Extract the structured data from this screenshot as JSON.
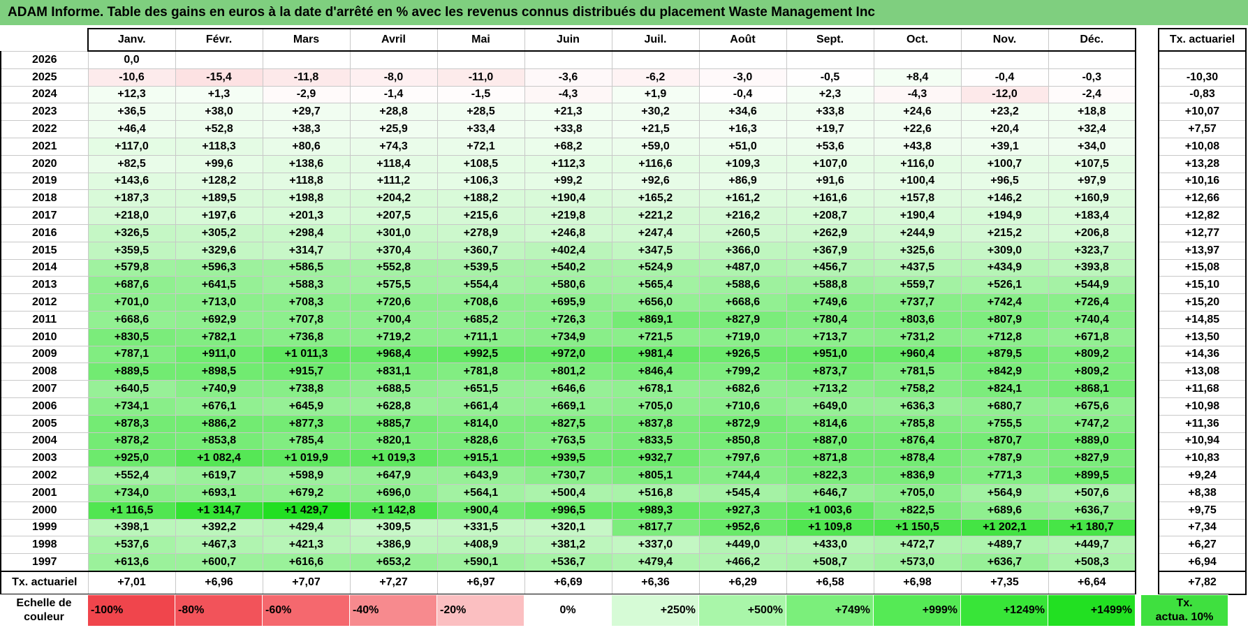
{
  "title": "ADAM Informe. Table des gains en euros à la date d'arrêté en % avec les revenus connus distribués du placement Waste Management Inc",
  "months": [
    "Janv.",
    "Févr.",
    "Mars",
    "Avril",
    "Mai",
    "Juin",
    "Juil.",
    "Août",
    "Sept.",
    "Oct.",
    "Nov.",
    "Déc."
  ],
  "side_header": "Tx. actuariel",
  "rows": [
    {
      "year": "2026",
      "v": [
        "0,0",
        "",
        "",
        "",
        "",
        "",
        "",
        "",
        "",
        "",
        "",
        ""
      ],
      "n": [
        0,
        null,
        null,
        null,
        null,
        null,
        null,
        null,
        null,
        null,
        null,
        null
      ],
      "rate": ""
    },
    {
      "year": "2025",
      "v": [
        "-10,6",
        "-15,4",
        "-11,8",
        "-8,0",
        "-11,0",
        "-3,6",
        "-6,2",
        "-3,0",
        "-0,5",
        "+8,4",
        "-0,4",
        "-0,3"
      ],
      "n": [
        -10.6,
        -15.4,
        -11.8,
        -8.0,
        -11.0,
        -3.6,
        -6.2,
        -3.0,
        -0.5,
        8.4,
        -0.4,
        -0.3
      ],
      "rate": "-10,30"
    },
    {
      "year": "2024",
      "v": [
        "+12,3",
        "+1,3",
        "-2,9",
        "-1,4",
        "-1,5",
        "-4,3",
        "+1,9",
        "-0,4",
        "+2,3",
        "-4,3",
        "-12,0",
        "-2,4"
      ],
      "n": [
        12.3,
        1.3,
        -2.9,
        -1.4,
        -1.5,
        -4.3,
        1.9,
        -0.4,
        2.3,
        -4.3,
        -12.0,
        -2.4
      ],
      "rate": "-0,83"
    },
    {
      "year": "2023",
      "v": [
        "+36,5",
        "+38,0",
        "+29,7",
        "+28,8",
        "+28,5",
        "+21,3",
        "+30,2",
        "+34,6",
        "+33,8",
        "+24,6",
        "+23,2",
        "+18,8"
      ],
      "n": [
        36.5,
        38.0,
        29.7,
        28.8,
        28.5,
        21.3,
        30.2,
        34.6,
        33.8,
        24.6,
        23.2,
        18.8
      ],
      "rate": "+10,07"
    },
    {
      "year": "2022",
      "v": [
        "+46,4",
        "+52,8",
        "+38,3",
        "+25,9",
        "+33,4",
        "+33,8",
        "+21,5",
        "+16,3",
        "+19,7",
        "+22,6",
        "+20,4",
        "+32,4"
      ],
      "n": [
        46.4,
        52.8,
        38.3,
        25.9,
        33.4,
        33.8,
        21.5,
        16.3,
        19.7,
        22.6,
        20.4,
        32.4
      ],
      "rate": "+7,57"
    },
    {
      "year": "2021",
      "v": [
        "+117,0",
        "+118,3",
        "+80,6",
        "+74,3",
        "+72,1",
        "+68,2",
        "+59,0",
        "+51,0",
        "+53,6",
        "+43,8",
        "+39,1",
        "+34,0"
      ],
      "n": [
        117.0,
        118.3,
        80.6,
        74.3,
        72.1,
        68.2,
        59.0,
        51.0,
        53.6,
        43.8,
        39.1,
        34.0
      ],
      "rate": "+10,08"
    },
    {
      "year": "2020",
      "v": [
        "+82,5",
        "+99,6",
        "+138,6",
        "+118,4",
        "+108,5",
        "+112,3",
        "+116,6",
        "+109,3",
        "+107,0",
        "+116,0",
        "+100,7",
        "+107,5"
      ],
      "n": [
        82.5,
        99.6,
        138.6,
        118.4,
        108.5,
        112.3,
        116.6,
        109.3,
        107.0,
        116.0,
        100.7,
        107.5
      ],
      "rate": "+13,28"
    },
    {
      "year": "2019",
      "v": [
        "+143,6",
        "+128,2",
        "+118,8",
        "+111,2",
        "+106,3",
        "+99,2",
        "+92,6",
        "+86,9",
        "+91,6",
        "+100,4",
        "+96,5",
        "+97,9"
      ],
      "n": [
        143.6,
        128.2,
        118.8,
        111.2,
        106.3,
        99.2,
        92.6,
        86.9,
        91.6,
        100.4,
        96.5,
        97.9
      ],
      "rate": "+10,16"
    },
    {
      "year": "2018",
      "v": [
        "+187,3",
        "+189,5",
        "+198,8",
        "+204,2",
        "+188,2",
        "+190,4",
        "+165,2",
        "+161,2",
        "+161,6",
        "+157,8",
        "+146,2",
        "+160,9"
      ],
      "n": [
        187.3,
        189.5,
        198.8,
        204.2,
        188.2,
        190.4,
        165.2,
        161.2,
        161.6,
        157.8,
        146.2,
        160.9
      ],
      "rate": "+12,66"
    },
    {
      "year": "2017",
      "v": [
        "+218,0",
        "+197,6",
        "+201,3",
        "+207,5",
        "+215,6",
        "+219,8",
        "+221,2",
        "+216,2",
        "+208,7",
        "+190,4",
        "+194,9",
        "+183,4"
      ],
      "n": [
        218.0,
        197.6,
        201.3,
        207.5,
        215.6,
        219.8,
        221.2,
        216.2,
        208.7,
        190.4,
        194.9,
        183.4
      ],
      "rate": "+12,82"
    },
    {
      "year": "2016",
      "v": [
        "+326,5",
        "+305,2",
        "+298,4",
        "+301,0",
        "+278,9",
        "+246,8",
        "+247,4",
        "+260,5",
        "+262,9",
        "+244,9",
        "+215,2",
        "+206,8"
      ],
      "n": [
        326.5,
        305.2,
        298.4,
        301.0,
        278.9,
        246.8,
        247.4,
        260.5,
        262.9,
        244.9,
        215.2,
        206.8
      ],
      "rate": "+12,77"
    },
    {
      "year": "2015",
      "v": [
        "+359,5",
        "+329,6",
        "+314,7",
        "+370,4",
        "+360,7",
        "+402,4",
        "+347,5",
        "+366,0",
        "+367,9",
        "+325,6",
        "+309,0",
        "+323,7"
      ],
      "n": [
        359.5,
        329.6,
        314.7,
        370.4,
        360.7,
        402.4,
        347.5,
        366.0,
        367.9,
        325.6,
        309.0,
        323.7
      ],
      "rate": "+13,97"
    },
    {
      "year": "2014",
      "v": [
        "+579,8",
        "+596,3",
        "+586,5",
        "+552,8",
        "+539,5",
        "+540,2",
        "+524,9",
        "+487,0",
        "+456,7",
        "+437,5",
        "+434,9",
        "+393,8"
      ],
      "n": [
        579.8,
        596.3,
        586.5,
        552.8,
        539.5,
        540.2,
        524.9,
        487.0,
        456.7,
        437.5,
        434.9,
        393.8
      ],
      "rate": "+15,08"
    },
    {
      "year": "2013",
      "v": [
        "+687,6",
        "+641,5",
        "+588,3",
        "+575,5",
        "+554,4",
        "+580,6",
        "+565,4",
        "+588,6",
        "+588,8",
        "+559,7",
        "+526,1",
        "+544,9"
      ],
      "n": [
        687.6,
        641.5,
        588.3,
        575.5,
        554.4,
        580.6,
        565.4,
        588.6,
        588.8,
        559.7,
        526.1,
        544.9
      ],
      "rate": "+15,10"
    },
    {
      "year": "2012",
      "v": [
        "+701,0",
        "+713,0",
        "+708,3",
        "+720,6",
        "+708,6",
        "+695,9",
        "+656,0",
        "+668,6",
        "+749,6",
        "+737,7",
        "+742,4",
        "+726,4"
      ],
      "n": [
        701.0,
        713.0,
        708.3,
        720.6,
        708.6,
        695.9,
        656.0,
        668.6,
        749.6,
        737.7,
        742.4,
        726.4
      ],
      "rate": "+15,20"
    },
    {
      "year": "2011",
      "v": [
        "+668,6",
        "+692,9",
        "+707,8",
        "+700,4",
        "+685,2",
        "+726,3",
        "+869,1",
        "+827,9",
        "+780,4",
        "+803,6",
        "+807,9",
        "+740,4"
      ],
      "n": [
        668.6,
        692.9,
        707.8,
        700.4,
        685.2,
        726.3,
        869.1,
        827.9,
        780.4,
        803.6,
        807.9,
        740.4
      ],
      "rate": "+14,85"
    },
    {
      "year": "2010",
      "v": [
        "+830,5",
        "+782,1",
        "+736,8",
        "+719,2",
        "+711,1",
        "+734,9",
        "+721,5",
        "+719,0",
        "+713,7",
        "+731,2",
        "+712,8",
        "+671,8"
      ],
      "n": [
        830.5,
        782.1,
        736.8,
        719.2,
        711.1,
        734.9,
        721.5,
        719.0,
        713.7,
        731.2,
        712.8,
        671.8
      ],
      "rate": "+13,50"
    },
    {
      "year": "2009",
      "v": [
        "+787,1",
        "+911,0",
        "+1 011,3",
        "+968,4",
        "+992,5",
        "+972,0",
        "+981,4",
        "+926,5",
        "+951,0",
        "+960,4",
        "+879,5",
        "+809,2"
      ],
      "n": [
        787.1,
        911.0,
        1011.3,
        968.4,
        992.5,
        972.0,
        981.4,
        926.5,
        951.0,
        960.4,
        879.5,
        809.2
      ],
      "rate": "+14,36"
    },
    {
      "year": "2008",
      "v": [
        "+889,5",
        "+898,5",
        "+915,7",
        "+831,1",
        "+781,8",
        "+801,2",
        "+846,4",
        "+799,2",
        "+873,7",
        "+781,5",
        "+842,9",
        "+809,2"
      ],
      "n": [
        889.5,
        898.5,
        915.7,
        831.1,
        781.8,
        801.2,
        846.4,
        799.2,
        873.7,
        781.5,
        842.9,
        809.2
      ],
      "rate": "+13,08"
    },
    {
      "year": "2007",
      "v": [
        "+640,5",
        "+740,9",
        "+738,8",
        "+688,5",
        "+651,5",
        "+646,6",
        "+678,1",
        "+682,6",
        "+713,2",
        "+758,2",
        "+824,1",
        "+868,1"
      ],
      "n": [
        640.5,
        740.9,
        738.8,
        688.5,
        651.5,
        646.6,
        678.1,
        682.6,
        713.2,
        758.2,
        824.1,
        868.1
      ],
      "rate": "+11,68"
    },
    {
      "year": "2006",
      "v": [
        "+734,1",
        "+676,1",
        "+645,9",
        "+628,8",
        "+661,4",
        "+669,1",
        "+705,0",
        "+710,6",
        "+649,0",
        "+636,3",
        "+680,7",
        "+675,6"
      ],
      "n": [
        734.1,
        676.1,
        645.9,
        628.8,
        661.4,
        669.1,
        705.0,
        710.6,
        649.0,
        636.3,
        680.7,
        675.6
      ],
      "rate": "+10,98"
    },
    {
      "year": "2005",
      "v": [
        "+878,3",
        "+886,2",
        "+877,3",
        "+885,7",
        "+814,0",
        "+827,5",
        "+837,8",
        "+872,9",
        "+814,6",
        "+785,8",
        "+755,5",
        "+747,2"
      ],
      "n": [
        878.3,
        886.2,
        877.3,
        885.7,
        814.0,
        827.5,
        837.8,
        872.9,
        814.6,
        785.8,
        755.5,
        747.2
      ],
      "rate": "+11,36"
    },
    {
      "year": "2004",
      "v": [
        "+878,2",
        "+853,8",
        "+785,4",
        "+820,1",
        "+828,6",
        "+763,5",
        "+833,5",
        "+850,8",
        "+887,0",
        "+876,4",
        "+870,7",
        "+889,0"
      ],
      "n": [
        878.2,
        853.8,
        785.4,
        820.1,
        828.6,
        763.5,
        833.5,
        850.8,
        887.0,
        876.4,
        870.7,
        889.0
      ],
      "rate": "+10,94"
    },
    {
      "year": "2003",
      "v": [
        "+925,0",
        "+1 082,4",
        "+1 019,9",
        "+1 019,3",
        "+915,1",
        "+939,5",
        "+932,7",
        "+797,6",
        "+871,8",
        "+878,4",
        "+787,9",
        "+827,9"
      ],
      "n": [
        925.0,
        1082.4,
        1019.9,
        1019.3,
        915.1,
        939.5,
        932.7,
        797.6,
        871.8,
        878.4,
        787.9,
        827.9
      ],
      "rate": "+10,83"
    },
    {
      "year": "2002",
      "v": [
        "+552,4",
        "+619,7",
        "+598,9",
        "+647,9",
        "+643,9",
        "+730,7",
        "+805,1",
        "+744,4",
        "+822,3",
        "+836,9",
        "+771,3",
        "+899,5"
      ],
      "n": [
        552.4,
        619.7,
        598.9,
        647.9,
        643.9,
        730.7,
        805.1,
        744.4,
        822.3,
        836.9,
        771.3,
        899.5
      ],
      "rate": "+9,24"
    },
    {
      "year": "2001",
      "v": [
        "+734,0",
        "+693,1",
        "+679,2",
        "+696,0",
        "+564,1",
        "+500,4",
        "+516,8",
        "+545,4",
        "+646,7",
        "+705,0",
        "+564,9",
        "+507,6"
      ],
      "n": [
        734.0,
        693.1,
        679.2,
        696.0,
        564.1,
        500.4,
        516.8,
        545.4,
        646.7,
        705.0,
        564.9,
        507.6
      ],
      "rate": "+8,38"
    },
    {
      "year": "2000",
      "v": [
        "+1 116,5",
        "+1 314,7",
        "+1 429,7",
        "+1 142,8",
        "+900,4",
        "+996,5",
        "+989,3",
        "+927,3",
        "+1 003,6",
        "+822,5",
        "+689,6",
        "+636,7"
      ],
      "n": [
        1116.5,
        1314.7,
        1429.7,
        1142.8,
        900.4,
        996.5,
        989.3,
        927.3,
        1003.6,
        822.5,
        689.6,
        636.7
      ],
      "rate": "+9,75"
    },
    {
      "year": "1999",
      "v": [
        "+398,1",
        "+392,2",
        "+429,4",
        "+309,5",
        "+331,5",
        "+320,1",
        "+817,7",
        "+952,6",
        "+1 109,8",
        "+1 150,5",
        "+1 202,1",
        "+1 180,7"
      ],
      "n": [
        398.1,
        392.2,
        429.4,
        309.5,
        331.5,
        320.1,
        817.7,
        952.6,
        1109.8,
        1150.5,
        1202.1,
        1180.7
      ],
      "rate": "+7,34"
    },
    {
      "year": "1998",
      "v": [
        "+537,6",
        "+467,3",
        "+421,3",
        "+386,9",
        "+408,9",
        "+381,2",
        "+337,0",
        "+449,0",
        "+433,0",
        "+472,7",
        "+489,7",
        "+449,7"
      ],
      "n": [
        537.6,
        467.3,
        421.3,
        386.9,
        408.9,
        381.2,
        337.0,
        449.0,
        433.0,
        472.7,
        489.7,
        449.7
      ],
      "rate": "+6,27"
    },
    {
      "year": "1997",
      "v": [
        "+613,6",
        "+600,7",
        "+616,6",
        "+653,2",
        "+590,1",
        "+536,7",
        "+479,4",
        "+466,2",
        "+508,7",
        "+573,0",
        "+636,7",
        "+508,3"
      ],
      "n": [
        613.6,
        600.7,
        616.6,
        653.2,
        590.1,
        536.7,
        479.4,
        466.2,
        508.7,
        573.0,
        636.7,
        508.3
      ],
      "rate": "+6,94"
    }
  ],
  "footer": {
    "label": "Tx. actuariel",
    "values": [
      "+7,01",
      "+6,96",
      "+7,07",
      "+7,27",
      "+6,97",
      "+6,69",
      "+6,36",
      "+6,29",
      "+6,58",
      "+6,98",
      "+7,35",
      "+6,64"
    ],
    "total": "+7,82"
  },
  "legend": {
    "label_line1": "Echelle de",
    "label_line2": "couleur",
    "items": [
      {
        "text": "-100%",
        "color": "#f0454c",
        "align": "left"
      },
      {
        "text": "-80%",
        "color": "#f2535a",
        "align": "left"
      },
      {
        "text": "-60%",
        "color": "#f5686e",
        "align": "left"
      },
      {
        "text": "-40%",
        "color": "#f78a8e",
        "align": "left"
      },
      {
        "text": "-20%",
        "color": "#fbbfc1",
        "align": "left"
      },
      {
        "text": "0%",
        "color": "#ffffff",
        "align": "center"
      },
      {
        "text": "+250%",
        "color": "#d6fbd6",
        "align": "right"
      },
      {
        "text": "+500%",
        "color": "#a9f6a9",
        "align": "right"
      },
      {
        "text": "+749%",
        "color": "#7bef7b",
        "align": "right"
      },
      {
        "text": "+999%",
        "color": "#55ea55",
        "align": "right"
      },
      {
        "text": "+1249%",
        "color": "#38e538",
        "align": "right"
      },
      {
        "text": "+1499%",
        "color": "#22e022",
        "align": "right"
      }
    ],
    "rate_line1": "Tx.",
    "rate_line2": "actua. 10%",
    "rate_color": "#3fe03f"
  },
  "colors": {
    "title_bg": "#7fcf7f",
    "rate_cell": "#ffffff"
  }
}
